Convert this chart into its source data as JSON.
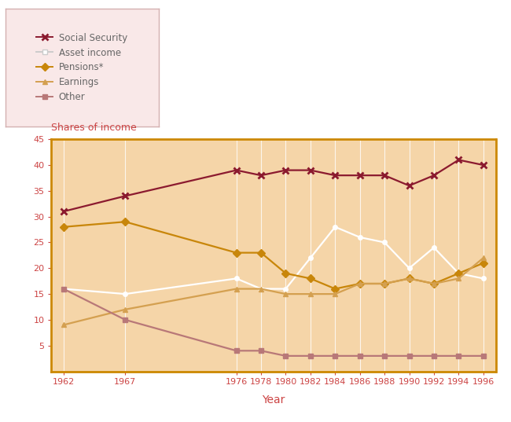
{
  "years": [
    1962,
    1967,
    1976,
    1978,
    1980,
    1982,
    1984,
    1986,
    1988,
    1990,
    1992,
    1994,
    1996
  ],
  "social_security": [
    31,
    34,
    39,
    38,
    39,
    39,
    38,
    38,
    38,
    36,
    38,
    41,
    40
  ],
  "asset_income": [
    16,
    15,
    18,
    16,
    16,
    22,
    28,
    26,
    25,
    20,
    24,
    19,
    18
  ],
  "pensions": [
    28,
    29,
    23,
    23,
    19,
    18,
    16,
    17,
    17,
    18,
    17,
    19,
    21
  ],
  "earnings": [
    9,
    12,
    16,
    16,
    15,
    15,
    15,
    17,
    17,
    18,
    17,
    18,
    22
  ],
  "other": [
    16,
    10,
    4,
    4,
    3,
    3,
    3,
    3,
    3,
    3,
    3,
    3,
    3
  ],
  "colors": {
    "social_security": "#8B1A2F",
    "asset_income": "#FFFFFF",
    "pensions": "#C8860A",
    "earnings": "#D4A050",
    "other": "#B87878"
  },
  "background_color": "#F5D5A8",
  "plot_border_color": "#CC8800",
  "ylabel": "Shares of income",
  "xlabel": "Year",
  "ylim": [
    0,
    45
  ],
  "xlim": [
    1961,
    1997
  ],
  "yticks": [
    5,
    10,
    15,
    20,
    25,
    30,
    35,
    40,
    45
  ],
  "xtick_labels": [
    "1962",
    "1967",
    "1976",
    "1978",
    "1980",
    "1982",
    "1984",
    "1986",
    "1988",
    "1990",
    "1992",
    "1994",
    "1996"
  ],
  "legend_bg": "#F9E8E8",
  "legend_border": "#D4B0B0",
  "tick_color": "#CC4444",
  "label_color": "#CC4444",
  "ylabel_color": "#CC4444",
  "xlabel_color": "#CC4444"
}
